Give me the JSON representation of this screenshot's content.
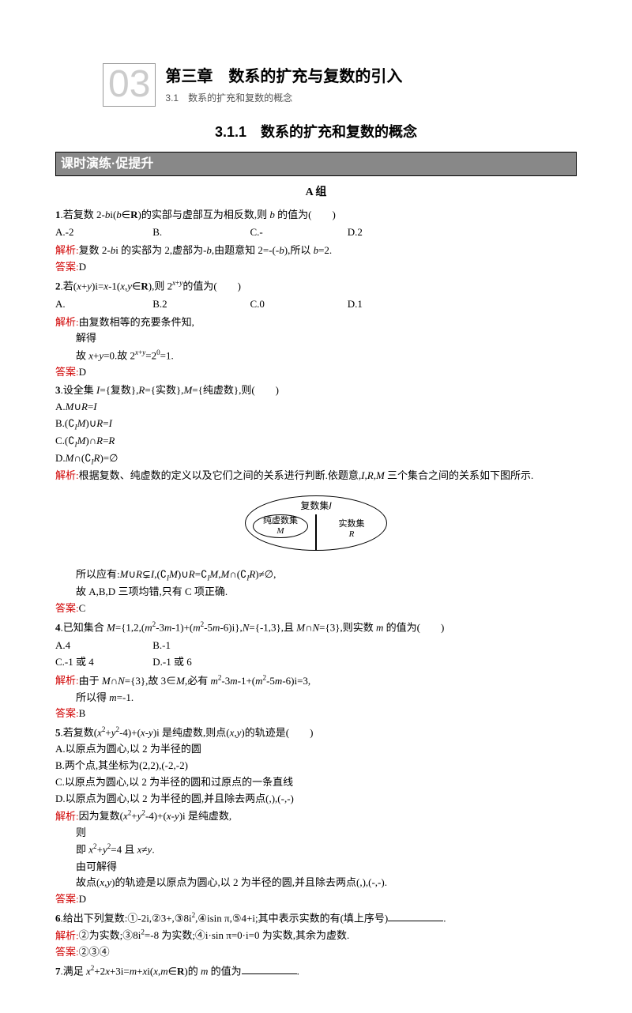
{
  "chapter": {
    "num": "03",
    "title_main": "第三章　数系的扩充与复数的引入",
    "title_sub": "3.1　数系的扩充和复数的概念"
  },
  "section_title": "3.1.1　数系的扩充和复数的概念",
  "lesson_banner": "课时演练·促提升",
  "group_label": "A 组",
  "colors": {
    "red_label": "#d00000",
    "banner_bg": "#888888",
    "chapter_num_color": "#cccccc"
  },
  "labels": {
    "analysis": "解析:",
    "answer": "答案:"
  },
  "q1": {
    "stem": "1.若复数 2-bi(b∈R)的实部与虚部互为相反数,则 b 的值为(　　)",
    "opts": {
      "A": "A.-2",
      "B": "B.",
      "C": "C.-",
      "D": "D.2"
    },
    "analysis": "复数 2-bi 的实部为 2,虚部为-b,由题意知 2=-(-b),所以 b=2.",
    "answer": "D"
  },
  "q2": {
    "stem": "2.若(x+y)i=x-1(x,y∈R),则 2^{x+y}的值为(　　)",
    "opts": {
      "A": "A.",
      "B": "B.2",
      "C": "C.0",
      "D": "D.1"
    },
    "a1": "由复数相等的充要条件知,",
    "a2": "解得",
    "a3": "故 x+y=0.故 2^{x+y}=2^{0}=1.",
    "answer": "D"
  },
  "q3": {
    "stem": "3.设全集 I={复数},R={实数},M={纯虚数},则(　　)",
    "opts": {
      "A": "A.M∪R=I",
      "B": "B.(∁_I M)∪R=I",
      "C": "C.(∁_I M)∩R=R",
      "D": "D.M∩(∁_I R)=∅"
    },
    "a1": "根据复数、纯虚数的定义以及它们之间的关系进行判断.依题意,I,R,M 三个集合之间的关系如下图所示.",
    "venn": {
      "top": "复数集I",
      "left1": "纯虚数集",
      "left2": "M",
      "right1": "实数集",
      "right2": "R"
    },
    "a2": "所以应有:M∪R⊊I,(∁_I M)∪R=∁_I M,M∩(∁_I R)≠∅,",
    "a3": "故 A,B,D 三项均错,只有 C 项正确.",
    "answer": "C"
  },
  "q4": {
    "stem": "4.已知集合 M={1,2,(m^2-3m-1)+(m^2-5m-6)i},N={-1,3},且 M∩N={3},则实数 m 的值为(　　)",
    "opts": {
      "A": "A.4",
      "B": "B.-1",
      "C": "C.-1 或 4",
      "D": "D.-1 或 6"
    },
    "a1": "由于 M∩N={3},故 3∈M,必有 m^2-3m-1+(m^2-5m-6)i=3,",
    "a2": "所以得 m=-1.",
    "answer": "B"
  },
  "q5": {
    "stem": "5.若复数(x^2+y^2-4)+(x-y)i 是纯虚数,则点(x,y)的轨迹是(　　)",
    "opts": {
      "A": "A.以原点为圆心,以 2 为半径的圆",
      "B": "B.两个点,其坐标为(2,2),(-2,-2)",
      "C": "C.以原点为圆心,以 2 为半径的圆和过原点的一条直线",
      "D": "D.以原点为圆心,以 2 为半径的圆,并且除去两点(,),(-,-)"
    },
    "a1": "因为复数(x^2+y^2-4)+(x-y)i 是纯虚数,",
    "a2": "则",
    "a3": "即 x^2+y^2=4 且 x≠y.",
    "a4": "由可解得",
    "a5": "故点(x,y)的轨迹是以原点为圆心,以 2 为半径的圆,并且除去两点(,),(-,-).",
    "answer": "D"
  },
  "q6": {
    "stem_a": "6.给出下列复数:①-2i,②3+,③8i^2,④isin π,⑤4+i;其中表示实数的有(填上序号)",
    "stem_b": ".",
    "a1": "②为实数;③8i^2=-8 为实数;④i·sin π=0·i=0 为实数,其余为虚数.",
    "answer": "②③④"
  },
  "q7": {
    "stem_a": "7.满足 x^2+2x+3i=m+xi(x,m∈R)的 m 的值为",
    "stem_b": "."
  }
}
